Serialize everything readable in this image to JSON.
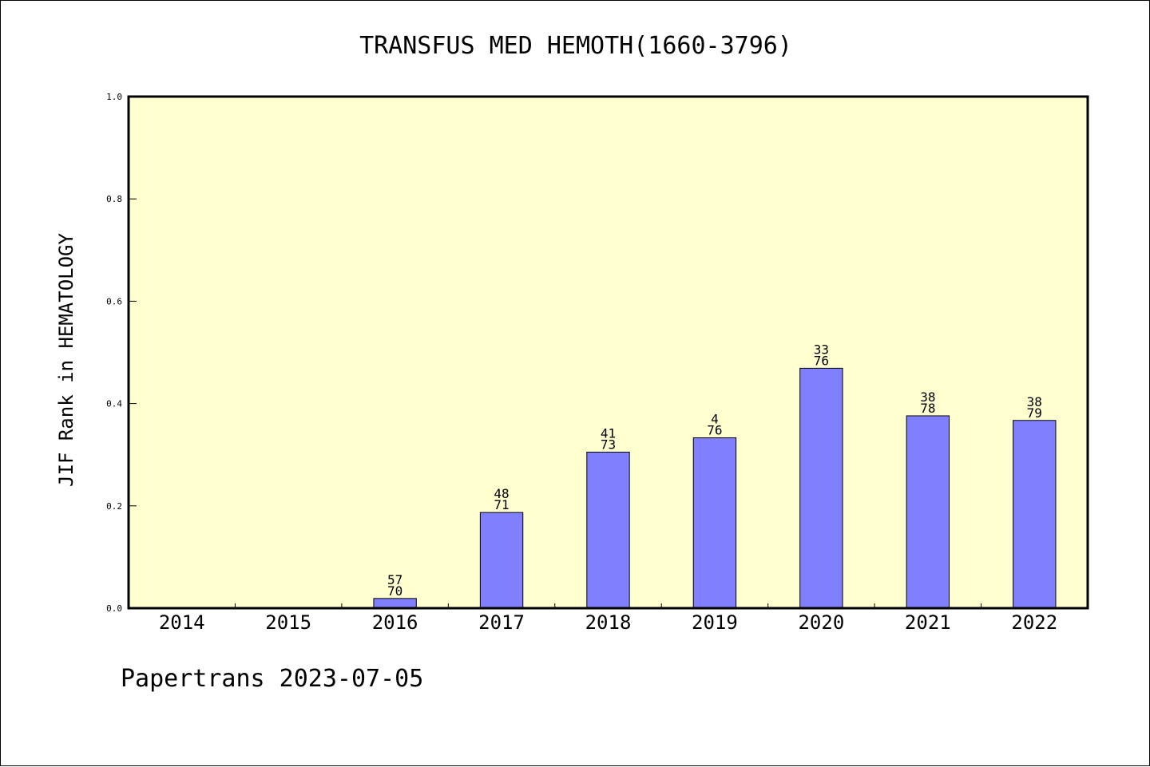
{
  "footer": {
    "text": "Papertrans 2023-07-05"
  },
  "chart_data": {
    "type": "bar",
    "title": "TRANSFUS MED HEMOTH(1660-3796)",
    "ylabel": "JIF Rank in HEMATOLOGY",
    "xlabel": "",
    "ylim": [
      0,
      1.0
    ],
    "yticks": [
      "0.0",
      "0.2",
      "0.4",
      "0.6",
      "0.8",
      "1.0"
    ],
    "categories": [
      "2014",
      "2015",
      "2016",
      "2017",
      "2018",
      "2019",
      "2020",
      "2021",
      "2022"
    ],
    "values": [
      null,
      null,
      0.019,
      0.187,
      0.305,
      0.333,
      0.469,
      0.376,
      0.367
    ],
    "bar_labels": [
      null,
      null,
      {
        "rank": "57",
        "total": "70"
      },
      {
        "rank": "48",
        "total": "71"
      },
      {
        "rank": "41",
        "total": "73"
      },
      {
        "rank": "4",
        "total": "76"
      },
      {
        "rank": "33",
        "total": "76"
      },
      {
        "rank": "38",
        "total": "78"
      },
      {
        "rank": "38",
        "total": "79"
      }
    ],
    "colors": {
      "plot_bg": "#ffffd0",
      "bar": "#8080ff",
      "bar_edge": "#000000"
    },
    "grid": false,
    "legend": "none"
  }
}
